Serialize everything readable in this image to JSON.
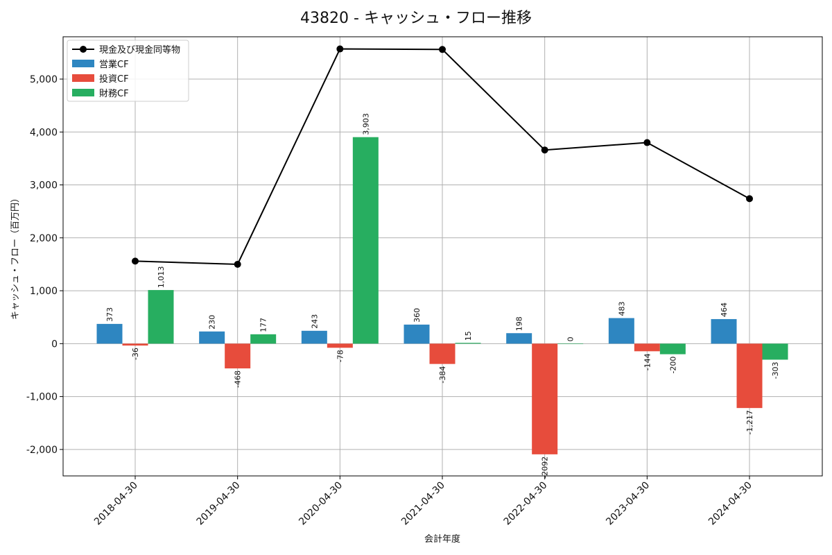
{
  "chart_data": {
    "type": "bar",
    "title": "43820 - キャッシュ・フロー推移",
    "xlabel": "会計年度",
    "ylabel": "キャッシュ・フロー（百万円）",
    "ylim": [
      -2500,
      5800
    ],
    "yticks": [
      -2000,
      -1000,
      0,
      1000,
      2000,
      3000,
      4000,
      5000
    ],
    "ytick_labels": [
      "-2,000",
      "-1,000",
      "0",
      "1,000",
      "2,000",
      "3,000",
      "4,000",
      "5,000"
    ],
    "grid": true,
    "legend_position": "top-left",
    "categories": [
      "2018-04-30",
      "2019-04-30",
      "2020-04-30",
      "2021-04-30",
      "2022-04-30",
      "2023-04-30",
      "2024-04-30"
    ],
    "series": [
      {
        "name": "営業CF",
        "kind": "bar",
        "color": "#2e86c1",
        "values": [
          373,
          230,
          243,
          360,
          198,
          483,
          464
        ],
        "labels": [
          "373",
          "230",
          "243",
          "360",
          "198",
          "483",
          "464"
        ]
      },
      {
        "name": "投資CF",
        "kind": "bar",
        "color": "#e74c3c",
        "values": [
          -36,
          -468,
          -78,
          -384,
          -2092,
          -144,
          -1217
        ],
        "labels": [
          "-36",
          "-468",
          "-78",
          "-384",
          "-2092",
          "-144",
          "-1,217"
        ]
      },
      {
        "name": "財務CF",
        "kind": "bar",
        "color": "#27ae60",
        "values": [
          1013,
          177,
          3903,
          15,
          0,
          -200,
          -303
        ],
        "labels": [
          "1,013",
          "177",
          "3,903",
          "15",
          "0",
          "-200",
          "-303"
        ]
      }
    ],
    "line": {
      "name": "現金及び現金同等物",
      "kind": "line",
      "color": "#000000",
      "values": [
        1560,
        1500,
        5570,
        5560,
        3660,
        3800,
        2740
      ]
    }
  }
}
